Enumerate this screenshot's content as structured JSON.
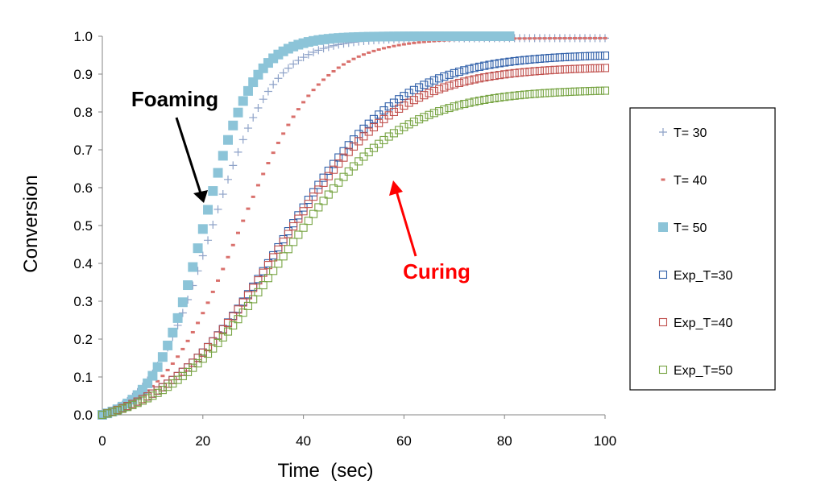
{
  "chart_data": {
    "type": "scatter",
    "title": "",
    "xlabel": "Time  (sec)",
    "ylabel": "Conversion",
    "xlim": [
      0,
      100
    ],
    "ylim": [
      0,
      1.0
    ],
    "xticks": [
      "0",
      "20",
      "40",
      "60",
      "80",
      "100"
    ],
    "yticks": [
      "0.0",
      "0.1",
      "0.2",
      "0.3",
      "0.4",
      "0.5",
      "0.6",
      "0.7",
      "0.8",
      "0.9",
      "1.0"
    ],
    "grid": false,
    "legend_position": "right",
    "series": [
      {
        "name": "T= 30",
        "marker": "plus",
        "color": "#8EA2C8",
        "x_max": 100,
        "midpoint": 21.5,
        "rate": 0.16,
        "final": 0.995
      },
      {
        "name": "T= 40",
        "marker": "dash",
        "color": "#D9706C",
        "x_max": 100,
        "midpoint": 27.0,
        "rate": 0.125,
        "final": 0.995
      },
      {
        "name": "T= 50",
        "marker": "filled-square",
        "color": "#8CC4D8",
        "x_max": 81,
        "midpoint": 20.0,
        "rate": 0.2,
        "final": 1.0
      },
      {
        "name": "Exp_T=30",
        "marker": "open-square",
        "color": "#2E5EA8",
        "x_max": 100,
        "midpoint": 35.5,
        "rate": 0.085,
        "final": 0.953
      },
      {
        "name": "Exp_T=40",
        "marker": "open-square",
        "color": "#C0504D",
        "x_max": 100,
        "midpoint": 35.0,
        "rate": 0.085,
        "final": 0.92
      },
      {
        "name": "Exp_T=50",
        "marker": "open-square",
        "color": "#77A443",
        "x_max": 100,
        "midpoint": 35.5,
        "rate": 0.085,
        "final": 0.86
      }
    ],
    "annotations": [
      {
        "text": "Foaming",
        "color": "#000000",
        "points_to": [
          20.5,
          0.57
        ]
      },
      {
        "text": "Curing",
        "color": "#FF0000",
        "points_to": [
          58,
          0.62
        ]
      }
    ]
  }
}
